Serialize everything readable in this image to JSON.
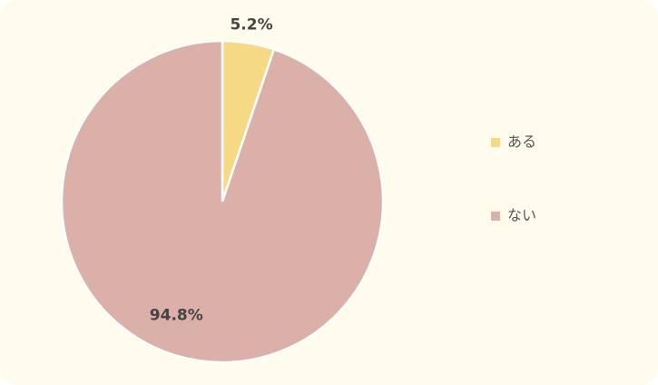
{
  "chart_data": {
    "type": "pie",
    "categories": [
      "ある",
      "ない"
    ],
    "values": [
      5.2,
      94.8
    ],
    "value_labels": [
      "5.2%",
      "94.8%"
    ],
    "colors": [
      "#f6d985",
      "#dbb0a8"
    ],
    "legend": "right"
  }
}
